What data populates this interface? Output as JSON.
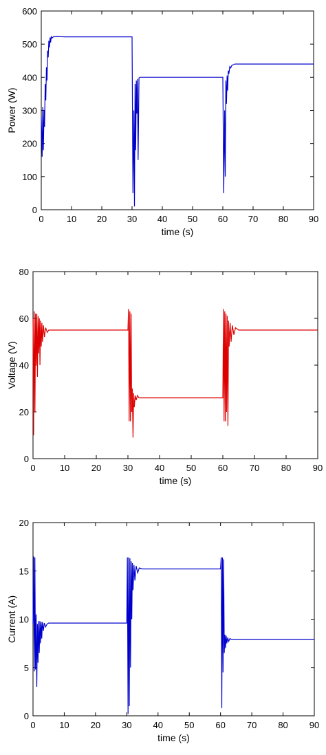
{
  "chart_data": [
    {
      "type": "line",
      "title": "",
      "xlabel": "time (s)",
      "ylabel": "Power (W)",
      "xlim": [
        0,
        90
      ],
      "ylim": [
        0,
        600
      ],
      "xticks": [
        "0",
        "10",
        "20",
        "30",
        "40",
        "50",
        "60",
        "70",
        "80",
        "90"
      ],
      "yticks": [
        "0",
        "100",
        "200",
        "300",
        "400",
        "500",
        "600"
      ],
      "grid": false,
      "legend": "none",
      "series": [
        {
          "name": "",
          "color": "#0000cc",
          "x": [
            0,
            0.3,
            0.5,
            0.7,
            0.9,
            1.1,
            1.3,
            1.5,
            1.7,
            1.9,
            2.1,
            2.3,
            2.5,
            2.7,
            2.9,
            3.1,
            3.3,
            3.5,
            4.0,
            5.0,
            8.0,
            20.0,
            30.0,
            30.3,
            30.6,
            30.8,
            31.0,
            31.2,
            31.4,
            31.6,
            31.8,
            32.0,
            32.3,
            32.6,
            33.0,
            33.5,
            40.0,
            50.0,
            60.0,
            60.3,
            60.6,
            60.8,
            61.0,
            61.2,
            61.4,
            61.6,
            61.8,
            62.0,
            62.3,
            62.6,
            63.0,
            63.5,
            64.0,
            70.0,
            80.0,
            90.0
          ],
          "y": [
            280,
            160,
            310,
            180,
            300,
            250,
            380,
            330,
            430,
            390,
            480,
            460,
            510,
            490,
            520,
            505,
            522,
            518,
            522,
            523,
            522,
            522,
            522,
            50,
            300,
            10,
            380,
            180,
            390,
            290,
            395,
            150,
            398,
            400,
            400,
            400,
            400,
            400,
            400,
            50,
            300,
            100,
            390,
            320,
            405,
            360,
            420,
            410,
            432,
            428,
            436,
            438,
            440,
            440,
            440,
            440
          ]
        }
      ]
    },
    {
      "type": "line",
      "title": "",
      "xlabel": "time (s)",
      "ylabel": "Voltage (V)",
      "xlim": [
        0,
        90
      ],
      "ylim": [
        0,
        80
      ],
      "xticks": [
        "0",
        "10",
        "20",
        "30",
        "40",
        "50",
        "60",
        "70",
        "80",
        "90"
      ],
      "yticks": [
        "0",
        "20",
        "40",
        "60",
        "80"
      ],
      "grid": false,
      "legend": "none",
      "series": [
        {
          "name": "",
          "color": "#dd0000",
          "x": [
            0,
            0.2,
            0.4,
            0.6,
            0.8,
            1.0,
            1.2,
            1.4,
            1.6,
            1.8,
            2.0,
            2.2,
            2.4,
            2.6,
            2.8,
            3.0,
            3.3,
            3.6,
            4.0,
            4.5,
            5.0,
            10.0,
            20.0,
            30.0,
            30.2,
            30.4,
            30.6,
            30.8,
            31.0,
            31.2,
            31.4,
            31.6,
            31.8,
            32.0,
            32.3,
            32.6,
            33.0,
            33.5,
            34.0,
            35.0,
            40.0,
            50.0,
            60.0,
            60.2,
            60.4,
            60.6,
            60.8,
            61.0,
            61.2,
            61.4,
            61.6,
            61.8,
            62.0,
            62.3,
            62.6,
            63.0,
            63.5,
            64.0,
            65.0,
            70.0,
            80.0,
            90.0
          ],
          "y": [
            60,
            10,
            63,
            20,
            62,
            40,
            62,
            35,
            61,
            45,
            60,
            40,
            59,
            48,
            58,
            50,
            57,
            52,
            56,
            54,
            55,
            55,
            55,
            55,
            64,
            16,
            63,
            16,
            62,
            20,
            30,
            9,
            28,
            22,
            27,
            25,
            27,
            26,
            26,
            26,
            26,
            26,
            26,
            64,
            16,
            63,
            16,
            62,
            20,
            61,
            14,
            59,
            48,
            58,
            50,
            57,
            53,
            56,
            55,
            55,
            55,
            55
          ]
        }
      ]
    },
    {
      "type": "line",
      "title": "",
      "xlabel": "time (s)",
      "ylabel": "Current (A)",
      "xlim": [
        0,
        90
      ],
      "ylim": [
        0,
        20
      ],
      "xticks": [
        "0",
        "10",
        "20",
        "30",
        "40",
        "50",
        "60",
        "70",
        "80",
        "90"
      ],
      "yticks": [
        "0",
        "5",
        "10",
        "15",
        "20"
      ],
      "grid": false,
      "legend": "none",
      "series": [
        {
          "name": "",
          "color": "#0000cc",
          "x": [
            0,
            0.2,
            0.4,
            0.6,
            0.8,
            1.0,
            1.2,
            1.4,
            1.6,
            1.8,
            2.0,
            2.2,
            2.4,
            2.6,
            2.8,
            3.0,
            3.3,
            3.6,
            4.0,
            4.5,
            5.0,
            10.0,
            20.0,
            30.0,
            30.2,
            30.4,
            30.6,
            30.8,
            31.0,
            31.2,
            31.4,
            31.6,
            31.8,
            32.0,
            32.3,
            32.6,
            33.0,
            33.5,
            34.0,
            35.0,
            40.0,
            50.0,
            60.0,
            60.2,
            60.4,
            60.6,
            60.8,
            61.0,
            61.2,
            61.4,
            61.6,
            61.8,
            62.0,
            62.3,
            62.6,
            63.0,
            63.5,
            64.0,
            65.0,
            70.0,
            80.0,
            90.0
          ],
          "y": [
            9.5,
            16.5,
            4.6,
            16.4,
            4.8,
            10.5,
            3.0,
            9.5,
            5.5,
            9.8,
            6.5,
            9.8,
            7.5,
            9.7,
            8.0,
            9.7,
            8.8,
            9.6,
            9.2,
            9.5,
            9.6,
            9.6,
            9.6,
            9.6,
            16.4,
            0.2,
            16.4,
            1.0,
            16.3,
            5.0,
            16.0,
            10.0,
            15.8,
            13.0,
            15.6,
            14.0,
            15.5,
            14.8,
            15.3,
            15.2,
            15.2,
            15.2,
            15.2,
            16.4,
            0.8,
            16.4,
            4.5,
            16.2,
            6.5,
            8.4,
            7.0,
            8.3,
            7.5,
            8.1,
            7.7,
            8.0,
            7.9,
            7.9,
            7.9,
            7.9,
            7.9,
            7.9
          ]
        }
      ]
    }
  ]
}
